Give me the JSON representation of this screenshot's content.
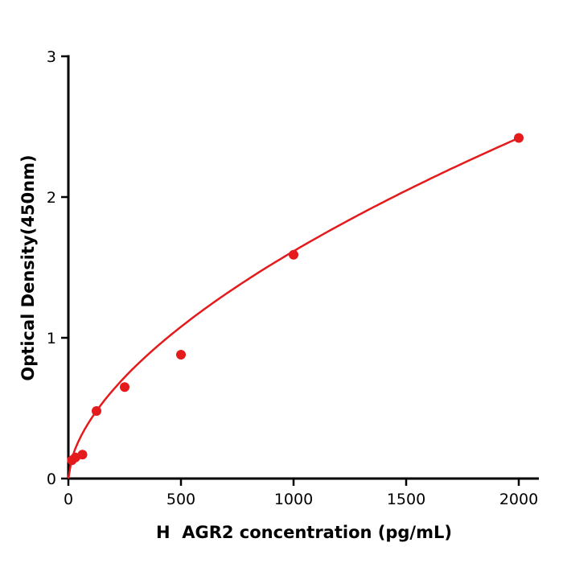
{
  "chart_data": {
    "type": "scatter",
    "title": "",
    "xlabel": "H  AGR2 concentration (pg/mL)",
    "ylabel": "Optical Density(450nm)",
    "xlim": [
      0,
      2000
    ],
    "ylim": [
      0,
      3
    ],
    "xticks": [
      0,
      500,
      1000,
      1500,
      2000
    ],
    "yticks": [
      0,
      1,
      2,
      3
    ],
    "grid": false,
    "legend": null,
    "point_color": "#e41a1c",
    "line_color": "#e41a1c",
    "axis_color": "#000000",
    "points": [
      {
        "x": 15.6,
        "y": 0.13
      },
      {
        "x": 31.25,
        "y": 0.15
      },
      {
        "x": 62.5,
        "y": 0.17
      },
      {
        "x": 125,
        "y": 0.48
      },
      {
        "x": 250,
        "y": 0.65
      },
      {
        "x": 500,
        "y": 0.88
      },
      {
        "x": 1000,
        "y": 1.59
      },
      {
        "x": 2000,
        "y": 2.42
      }
    ],
    "fit_curve": {
      "type": "power",
      "a": 0.02879,
      "b": 0.583,
      "x_start": 0,
      "x_end": 2000
    }
  }
}
